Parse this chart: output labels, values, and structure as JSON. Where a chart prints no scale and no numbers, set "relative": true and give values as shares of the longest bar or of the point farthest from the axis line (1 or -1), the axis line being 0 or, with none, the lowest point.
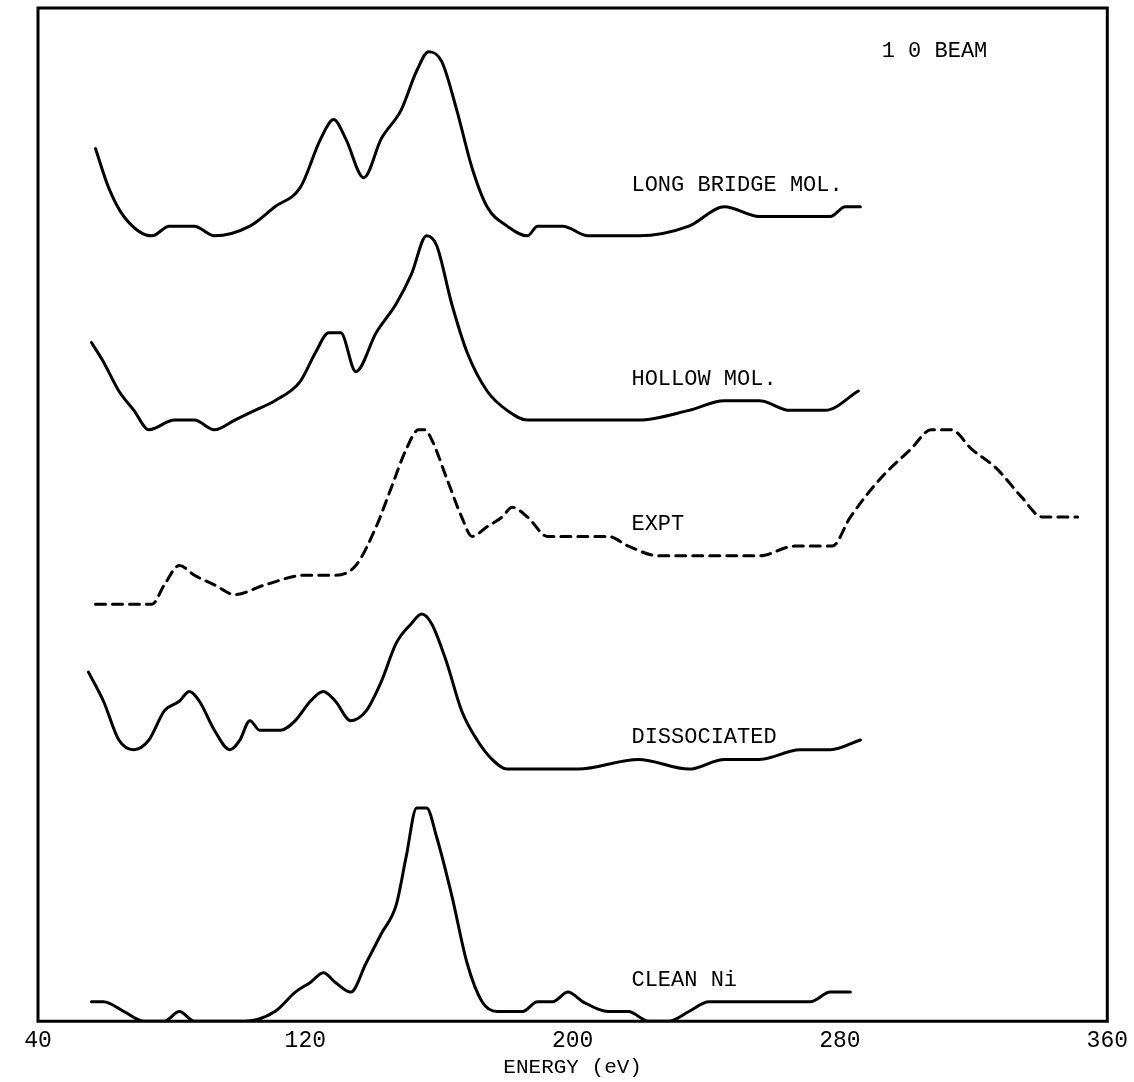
{
  "chart_data": {
    "type": "line",
    "title": "1 0 BEAM",
    "xlabel": "ENERGY (eV)",
    "relative": true,
    "xlim": [
      40,
      360
    ],
    "xticks": [
      40,
      120,
      200,
      280,
      360
    ],
    "grid": false,
    "legend": false,
    "marker": "none",
    "line_style": "solid",
    "series": [
      {
        "name": "LONG BRIDGE MOL.",
        "color": "#000000",
        "x": [
          57.2,
          61.1,
          65.7,
          74.1,
          79.3,
          86.8,
          92.8,
          103.4,
          110.9,
          118.5,
          124.6,
          128.5,
          132.1,
          137.5,
          142.7,
          148.7,
          153.3,
          156.9,
          160.8,
          165.3,
          169.9,
          174.4,
          180.4,
          186.5,
          189.5,
          192.5,
          197.0,
          204.6,
          219.7,
          234.8,
          245.4,
          255.9,
          265.0,
          277.1,
          281.6,
          286.1
        ],
        "values": [
          0.9,
          0.86,
          0.83,
          0.81,
          0.82,
          0.82,
          0.81,
          0.82,
          0.84,
          0.86,
          0.91,
          0.93,
          0.91,
          0.87,
          0.91,
          0.94,
          0.98,
          1.0,
          0.99,
          0.94,
          0.88,
          0.84,
          0.82,
          0.81,
          0.82,
          0.82,
          0.82,
          0.81,
          0.81,
          0.82,
          0.84,
          0.83,
          0.83,
          0.83,
          0.84,
          0.84
        ]
      },
      {
        "name": "HOLLOW MOL.",
        "color": "#000000",
        "x": [
          56.0,
          59.6,
          64.2,
          68.7,
          73.2,
          80.8,
          86.8,
          92.8,
          98.9,
          104.9,
          110.9,
          118.5,
          123.1,
          127.0,
          130.6,
          135.1,
          141.2,
          147.2,
          151.7,
          156.3,
          159.3,
          163.8,
          168.4,
          174.4,
          180.4,
          186.5,
          192.5,
          201.6,
          219.7,
          234.8,
          245.4,
          255.9,
          265.0,
          275.6,
          285.5
        ],
        "values": [
          0.7,
          0.68,
          0.65,
          0.63,
          0.61,
          0.62,
          0.62,
          0.61,
          0.62,
          0.63,
          0.64,
          0.66,
          0.69,
          0.71,
          0.71,
          0.67,
          0.71,
          0.74,
          0.77,
          0.81,
          0.8,
          0.74,
          0.69,
          0.65,
          0.63,
          0.62,
          0.62,
          0.62,
          0.62,
          0.63,
          0.64,
          0.64,
          0.63,
          0.63,
          0.65
        ]
      },
      {
        "name": "EXPT",
        "color": "#000000",
        "line_style": "dashed",
        "x": [
          57.2,
          62.7,
          67.2,
          70.2,
          74.1,
          77.8,
          82.3,
          86.8,
          92.8,
          98.9,
          107.9,
          120.0,
          129.1,
          135.1,
          141.2,
          145.7,
          150.2,
          153.9,
          155.7,
          157.8,
          162.3,
          166.8,
          169.9,
          174.4,
          178.9,
          181.9,
          186.5,
          192.5,
          201.6,
          210.6,
          216.7,
          225.7,
          234.8,
          246.9,
          255.9,
          266.5,
          274.0,
          277.7,
          283.1,
          292.2,
          301.2,
          307.3,
          313.3,
          319.4,
          326.9,
          334.5,
          340.5,
          345.0,
          351.1
        ],
        "values": [
          0.43,
          0.43,
          0.43,
          0.43,
          0.43,
          0.45,
          0.47,
          0.46,
          0.45,
          0.44,
          0.45,
          0.46,
          0.46,
          0.47,
          0.51,
          0.55,
          0.59,
          0.61,
          0.61,
          0.6,
          0.56,
          0.52,
          0.5,
          0.51,
          0.52,
          0.53,
          0.52,
          0.5,
          0.5,
          0.5,
          0.49,
          0.48,
          0.48,
          0.48,
          0.48,
          0.49,
          0.49,
          0.49,
          0.52,
          0.56,
          0.59,
          0.61,
          0.61,
          0.59,
          0.57,
          0.54,
          0.52,
          0.52,
          0.52
        ]
      },
      {
        "name": "DISSOCIATED",
        "color": "#000000",
        "x": [
          55.1,
          59.6,
          64.2,
          68.7,
          73.2,
          77.8,
          82.3,
          85.3,
          88.3,
          92.8,
          97.4,
          100.4,
          103.4,
          106.4,
          112.5,
          117.0,
          121.5,
          125.4,
          129.0,
          133.6,
          138.2,
          142.7,
          147.2,
          151.7,
          154.8,
          157.8,
          162.3,
          166.8,
          171.4,
          175.9,
          180.4,
          189.5,
          201.6,
          219.7,
          234.8,
          245.4,
          255.9,
          268.0,
          277.1,
          286.1
        ],
        "values": [
          0.36,
          0.33,
          0.29,
          0.28,
          0.29,
          0.32,
          0.33,
          0.34,
          0.33,
          0.3,
          0.28,
          0.29,
          0.31,
          0.3,
          0.3,
          0.31,
          0.33,
          0.34,
          0.33,
          0.31,
          0.32,
          0.35,
          0.39,
          0.41,
          0.42,
          0.41,
          0.37,
          0.32,
          0.29,
          0.27,
          0.26,
          0.26,
          0.26,
          0.27,
          0.26,
          0.27,
          0.27,
          0.28,
          0.28,
          0.29
        ]
      },
      {
        "name": "CLEAN Ni",
        "color": "#000000",
        "x": [
          56.0,
          59.6,
          65.7,
          71.7,
          77.8,
          82.3,
          86.8,
          92.8,
          101.9,
          110.9,
          117.0,
          121.5,
          125.4,
          129.0,
          133.6,
          138.2,
          142.7,
          147.2,
          150.2,
          153.3,
          156.3,
          159.3,
          163.8,
          168.4,
          172.9,
          177.4,
          181.9,
          185.0,
          189.5,
          194.0,
          198.6,
          203.1,
          210.6,
          216.7,
          222.7,
          228.8,
          234.8,
          240.8,
          245.4,
          252.9,
          262.0,
          271.1,
          277.1,
          283.1
        ],
        "values": [
          0.02,
          0.02,
          0.01,
          0,
          0.0,
          0.01,
          0.0,
          0.0,
          0,
          0.01,
          0.03,
          0.04,
          0.05,
          0.04,
          0.03,
          0.06,
          0.09,
          0.12,
          0.17,
          0.22,
          0.22,
          0.19,
          0.13,
          0.06,
          0.02,
          0.01,
          0.01,
          0.01,
          0.02,
          0.02,
          0.03,
          0.02,
          0.01,
          0.01,
          0.0,
          0.0,
          0.01,
          0.02,
          0.02,
          0.02,
          0.02,
          0.02,
          0.03,
          0.03
        ]
      }
    ]
  }
}
